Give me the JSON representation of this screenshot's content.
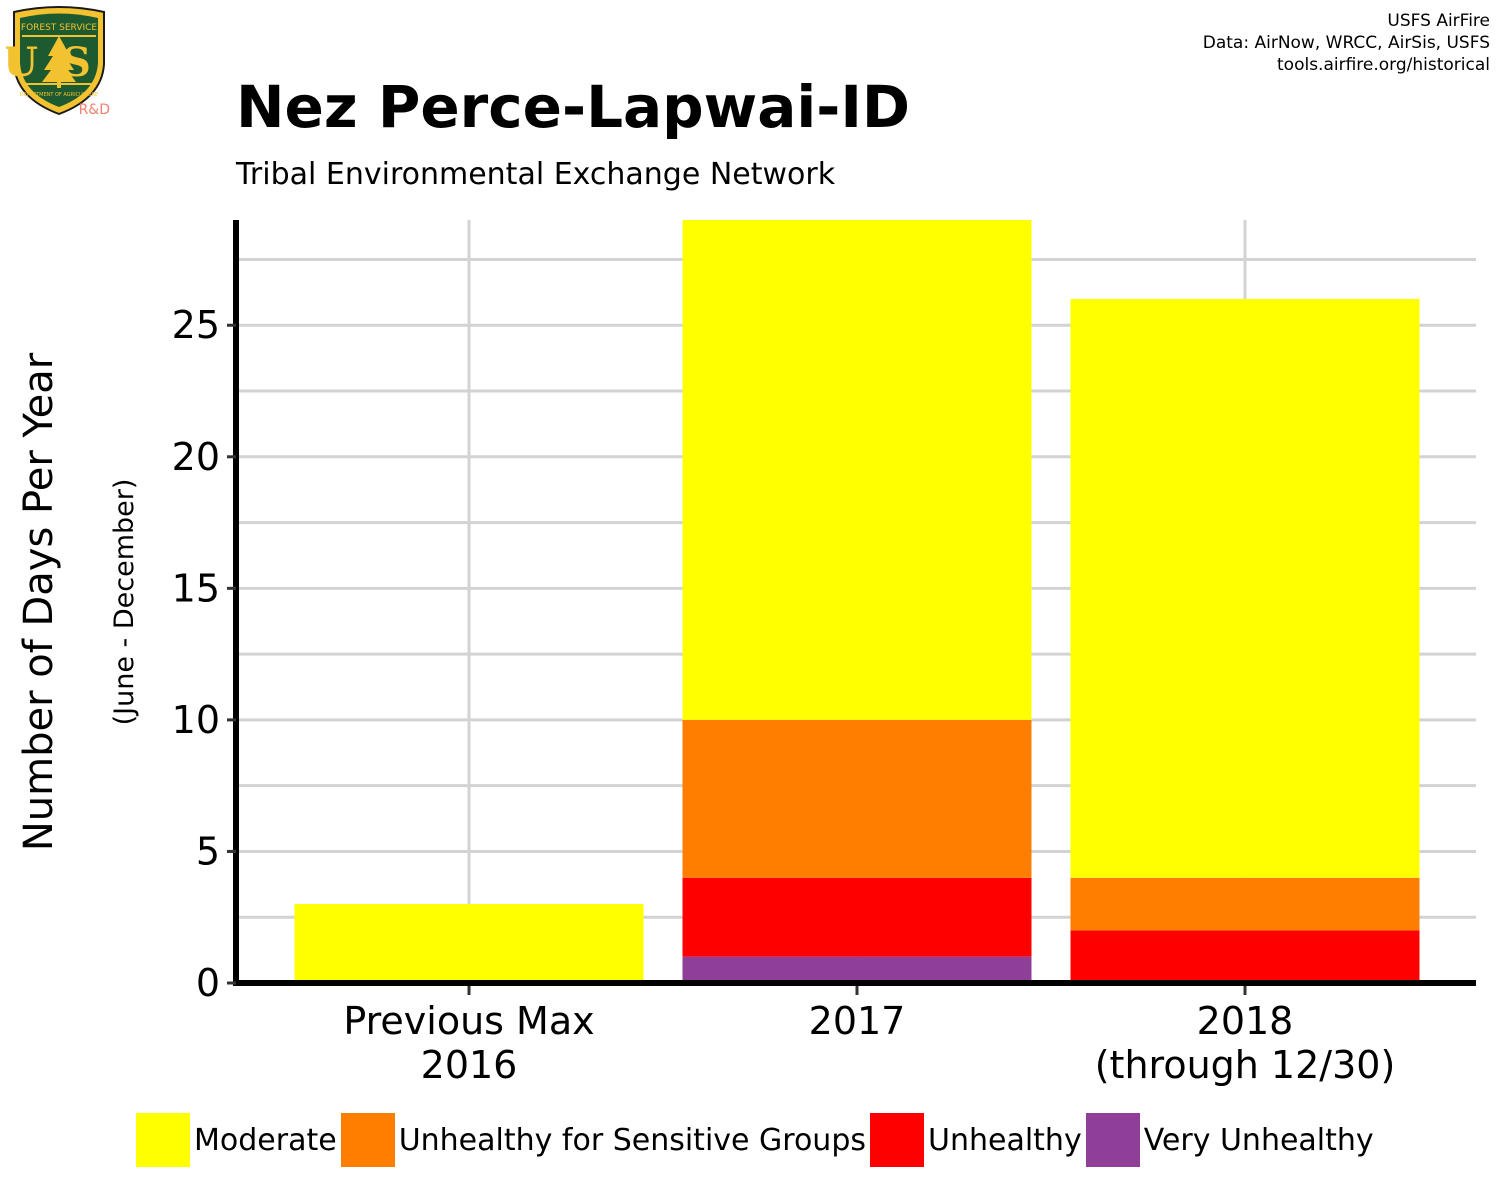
{
  "logo": {
    "arc_text": "FOREST SERVICE",
    "letters": "US",
    "bottom_text": "DEPARTMENT OF AGRICULTURE",
    "tag": "R&D"
  },
  "credits": [
    "USFS AirFire",
    "Data: AirNow, WRCC, AirSis, USFS",
    "tools.airfire.org/historical"
  ],
  "chart_data": {
    "type": "bar",
    "stacked": true,
    "title": "Nez Perce-Lapwai-ID",
    "subtitle": "Tribal Environmental Exchange Network",
    "ylabel": "Number of Days Per Year",
    "ylabel_sub": "(June - December)",
    "xlabel": "",
    "categories": [
      [
        "Previous Max",
        "2016"
      ],
      [
        "2017"
      ],
      [
        "2018",
        "(through 12/30)"
      ]
    ],
    "ylim": [
      0,
      29
    ],
    "yticks": [
      0,
      5,
      10,
      15,
      20,
      25
    ],
    "grid": true,
    "legend_position": "bottom",
    "series": [
      {
        "name": "Very Unhealthy",
        "color": "#8F3F97",
        "values": [
          0,
          1,
          0
        ]
      },
      {
        "name": "Unhealthy",
        "color": "#FF0000",
        "values": [
          0,
          3,
          2
        ]
      },
      {
        "name": "Unhealthy for Sensitive Groups",
        "color": "#FF7E00",
        "values": [
          0,
          6,
          2
        ]
      },
      {
        "name": "Moderate",
        "color": "#FFFF00",
        "values": [
          3,
          19,
          22
        ]
      }
    ],
    "legend_order": [
      "Moderate",
      "Unhealthy for Sensitive Groups",
      "Unhealthy",
      "Very Unhealthy"
    ]
  }
}
